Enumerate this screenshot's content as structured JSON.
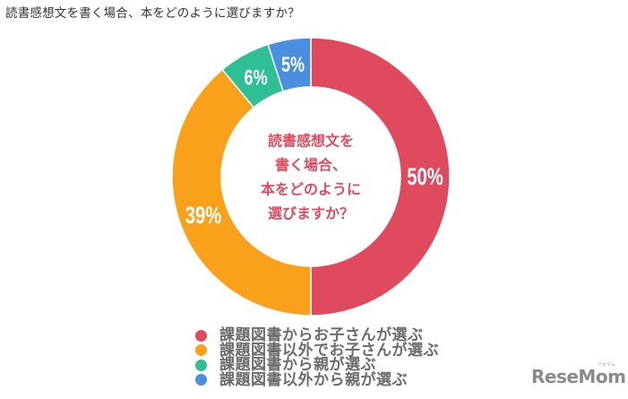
{
  "page": {
    "title": "読書感想文を書く場合、本をどのように選びますか？"
  },
  "chart_data": {
    "type": "pie",
    "variant": "donut",
    "title": "読書感想文を書く場合、本をどのように選びますか？",
    "center_label": [
      "読書感想文を",
      "書く場合、",
      "本をどのように",
      "選びますか？"
    ],
    "categories": [
      "課題図書からお子さんが選ぶ",
      "課題図書以外でお子さんが選ぶ",
      "課題図書から親が選ぶ",
      "課題図書以外から親が選ぶ"
    ],
    "values": [
      50,
      39,
      6,
      5
    ],
    "value_labels": [
      "50%",
      "39%",
      "6%",
      "5%"
    ],
    "colors": [
      "#e04a5e",
      "#f9a11b",
      "#2fbf95",
      "#4a8fe0"
    ],
    "legend_position": "bottom",
    "start_angle": "12 o'clock, clockwise"
  },
  "center": {
    "lines": [
      "読書感想文を",
      "書く場合、",
      "本をどのように",
      "選びますか？"
    ],
    "color": "#e04a5e"
  },
  "legend": {
    "items": [
      {
        "label": "課題図書からお子さんが選ぶ",
        "color": "#e04a5e"
      },
      {
        "label": "課題図書以外でお子さんが選ぶ",
        "color": "#f9a11b"
      },
      {
        "label": "課題図書から親が選ぶ",
        "color": "#2fbf95"
      },
      {
        "label": "課題図書以外から親が選ぶ",
        "color": "#4a8fe0"
      }
    ]
  },
  "branding": {
    "logo": "ReseMom",
    "logo_sub": "リセマム"
  }
}
